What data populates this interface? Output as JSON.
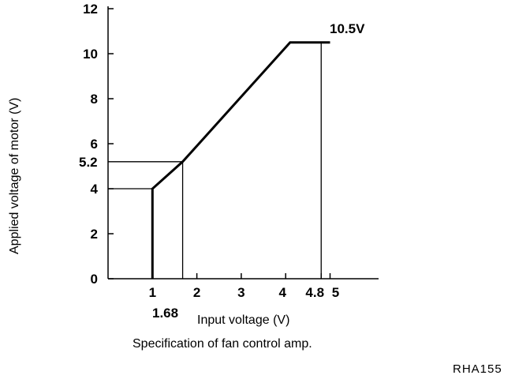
{
  "chart_data": {
    "type": "line",
    "xlabel": "Input voltage (V)",
    "ylabel": "Applied voltage of motor (V)",
    "xlim": [
      0,
      6
    ],
    "ylim": [
      0,
      12
    ],
    "x_ticks": [
      1,
      2,
      3,
      4,
      4.8,
      5
    ],
    "y_ticks": [
      0,
      2,
      4,
      6,
      8,
      10,
      12
    ],
    "series": [
      {
        "x": [
          1,
          1,
          1.68,
          4.1,
          5
        ],
        "y": [
          0,
          4,
          5.2,
          10.5,
          10.5
        ]
      }
    ],
    "reference_lines": [
      {
        "from": [
          1.68,
          0
        ],
        "to": [
          1.68,
          5.2
        ]
      },
      {
        "from": [
          0,
          5.2
        ],
        "to": [
          1.68,
          5.2
        ]
      },
      {
        "from": [
          0,
          4
        ],
        "to": [
          1,
          4
        ]
      },
      {
        "from": [
          4.8,
          0
        ],
        "to": [
          4.8,
          10.5
        ]
      }
    ],
    "annotations": {
      "y_extra_label": "5.2",
      "x_extra_label": "1.68",
      "max_label": "10.5V"
    }
  },
  "caption": "Specification of fan control amp.",
  "figure_code": "RHA155"
}
